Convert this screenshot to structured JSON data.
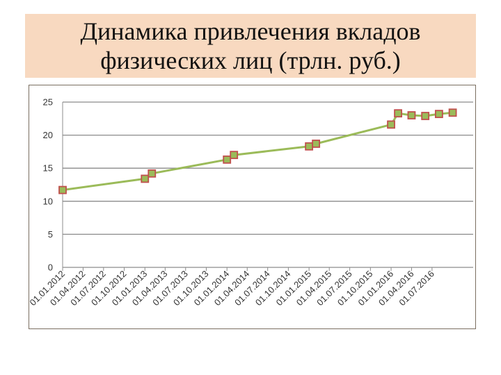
{
  "title": {
    "line1": "Динамика привлечения вкладов",
    "line2": "физических лиц (трлн. руб.)"
  },
  "chart_data": {
    "type": "line",
    "title": "Динамика привлечения вкладов физических лиц (трлн. руб.)",
    "xlabel": "",
    "ylabel": "",
    "ylim": [
      0,
      25
    ],
    "yticks": [
      0,
      5,
      10,
      15,
      20,
      25
    ],
    "grid": true,
    "legend": "none",
    "colors": {
      "line": "#9bbb59",
      "marker": "#9bbb59",
      "marker_edge": "#c0504d"
    },
    "categories": [
      "01.01.2012",
      "01.04.2012",
      "01.07.2012",
      "01.10.2012",
      "01.01.2013",
      "01.04.2013",
      "01.07.2013",
      "01.10.2013",
      "01.01.2014",
      "01.04.2014",
      "01.07.2014",
      "01.10.2014",
      "01.01.2015",
      "01.04.2015",
      "01.07.2015",
      "01.10.2015",
      "01.01.2016",
      "01.04.2016",
      "01.07.2016"
    ],
    "points": [
      {
        "x": "2012-01-01",
        "y": 11.7
      },
      {
        "x": "2013-01-01",
        "y": 13.4
      },
      {
        "x": "2013-02-01",
        "y": 14.2
      },
      {
        "x": "2014-01-01",
        "y": 16.3
      },
      {
        "x": "2014-02-01",
        "y": 17.0
      },
      {
        "x": "2015-01-01",
        "y": 18.3
      },
      {
        "x": "2015-02-01",
        "y": 18.7
      },
      {
        "x": "2016-01-01",
        "y": 21.6
      },
      {
        "x": "2016-02-01",
        "y": 23.3
      },
      {
        "x": "2016-04-01",
        "y": 23.0
      },
      {
        "x": "2016-06-01",
        "y": 22.9
      },
      {
        "x": "2016-08-01",
        "y": 23.2
      },
      {
        "x": "2016-10-01",
        "y": 23.4
      }
    ]
  }
}
